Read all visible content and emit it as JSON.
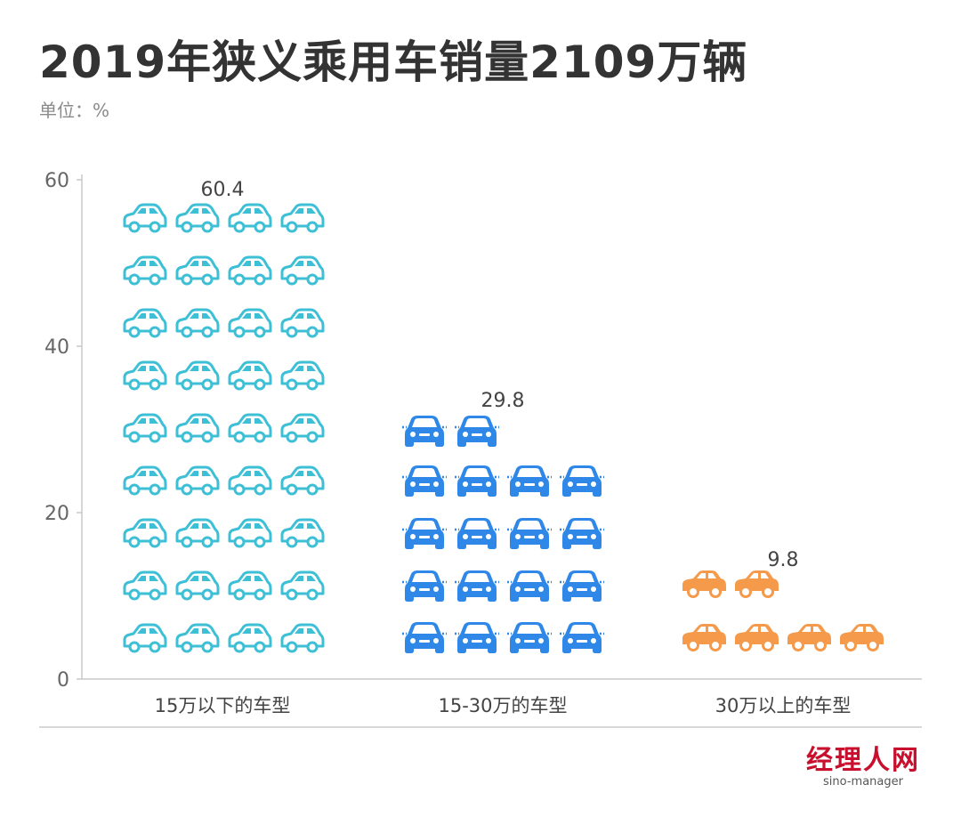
{
  "title": "2019年狭义乘用车销量2109万辆",
  "unit_label": "单位：%",
  "brand": {
    "name": "经理人网",
    "sub": "sino-manager"
  },
  "colors": {
    "axis": "#c8c8c8",
    "tick_text": "#666666",
    "label_text": "#444444",
    "hatchback": "#3dbfd6",
    "sedan": "#2f87e8",
    "suv": "#f59a4a"
  },
  "chart_data": {
    "type": "bar",
    "style": "pictograph",
    "categories": [
      "15万以下的车型",
      "15-30万的车型",
      "30万以上的车型"
    ],
    "values": [
      60.4,
      29.8,
      9.8
    ],
    "value_labels": [
      "60.4",
      "29.8",
      "9.8"
    ],
    "icons": [
      "hatchback-car-icon",
      "sedan-front-car-icon",
      "sedan-side-car-icon"
    ],
    "icon_counts": [
      36,
      18,
      6
    ],
    "yticks": [
      0,
      20,
      40,
      60
    ],
    "ylim": [
      0,
      60
    ],
    "grid": false,
    "legend": "none"
  }
}
